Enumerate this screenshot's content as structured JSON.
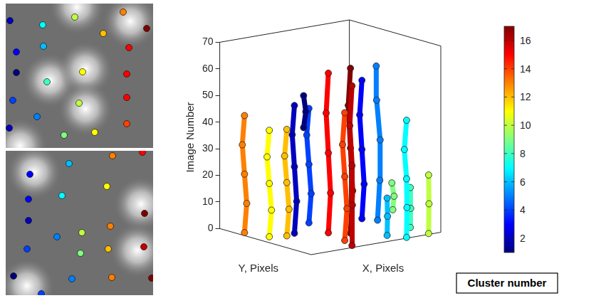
{
  "chart_data": {
    "type": "scatter3d",
    "x_label": "X, Pixels",
    "y_label": "Y, Pixels",
    "z_label": "Image Number",
    "xlim": [
      0,
      100
    ],
    "ylim": [
      0,
      100
    ],
    "zlim": [
      0,
      70
    ],
    "zticks": [
      0,
      10,
      20,
      30,
      40,
      50,
      60,
      70
    ],
    "marker": "circle",
    "line_style": "solid",
    "grid": false,
    "series": [
      {
        "cluster": 1,
        "color": "#000080",
        "points": [
          [
            40,
            65,
            38
          ],
          [
            41,
            64,
            44
          ],
          [
            40,
            65,
            50
          ]
        ]
      },
      {
        "cluster": 2,
        "color": "#0000BF",
        "points": [
          [
            28,
            58,
            0
          ],
          [
            29,
            57,
            12
          ],
          [
            28,
            58,
            25
          ],
          [
            27,
            59,
            37
          ],
          [
            28,
            58,
            48
          ]
        ]
      },
      {
        "cluster": 3,
        "color": "#0000FF",
        "points": [
          [
            85,
            65,
            0
          ],
          [
            86,
            64,
            13
          ],
          [
            85,
            65,
            26
          ],
          [
            84,
            66,
            39
          ],
          [
            85,
            65,
            52
          ]
        ]
      },
      {
        "cluster": 4,
        "color": "#0040FF",
        "points": [
          [
            30,
            45,
            5
          ],
          [
            31,
            44,
            16
          ],
          [
            30,
            45,
            27
          ],
          [
            29,
            46,
            38
          ],
          [
            30,
            45,
            48
          ]
        ]
      },
      {
        "cluster": 5,
        "color": "#0080FF",
        "points": [
          [
            90,
            55,
            0
          ],
          [
            91,
            54,
            15
          ],
          [
            92,
            55,
            30
          ],
          [
            90,
            56,
            45
          ],
          [
            89,
            55,
            58
          ]
        ]
      },
      {
        "cluster": 6,
        "color": "#00BFFF",
        "points": [
          [
            60,
            2,
            2
          ],
          [
            61,
            3,
            9
          ],
          [
            60,
            2,
            16
          ]
        ]
      },
      {
        "cluster": 7,
        "color": "#00FFFF",
        "points": [
          [
            75,
            2,
            0
          ],
          [
            76,
            3,
            11
          ],
          [
            75,
            2,
            22
          ],
          [
            74,
            3,
            33
          ],
          [
            75,
            2,
            44
          ]
        ]
      },
      {
        "cluster": 8,
        "color": "#40FFBF",
        "points": [
          [
            80,
            5,
            3
          ],
          [
            81,
            6,
            10
          ],
          [
            80,
            5,
            18
          ]
        ]
      },
      {
        "cluster": 9,
        "color": "#80FF80",
        "points": [
          [
            70,
            10,
            10
          ],
          [
            71,
            10,
            15
          ],
          [
            70,
            11,
            20
          ]
        ]
      },
      {
        "cluster": 10,
        "color": "#BFFF40",
        "points": [
          [
            92,
            2,
            0
          ],
          [
            93,
            3,
            11
          ],
          [
            92,
            2,
            22
          ]
        ]
      },
      {
        "cluster": 11,
        "color": "#FFFF00",
        "points": [
          [
            10,
            60,
            0
          ],
          [
            11,
            59,
            10
          ],
          [
            10,
            60,
            20
          ],
          [
            9,
            61,
            30
          ],
          [
            10,
            60,
            40
          ]
        ]
      },
      {
        "cluster": 12,
        "color": "#FFBF00",
        "points": [
          [
            20,
            55,
            0
          ],
          [
            21,
            54,
            10
          ],
          [
            20,
            55,
            20
          ],
          [
            19,
            56,
            30
          ],
          [
            20,
            55,
            40
          ]
        ]
      },
      {
        "cluster": 13,
        "color": "#FF8000",
        "points": [
          [
            5,
            80,
            0
          ],
          [
            6,
            79,
            11
          ],
          [
            5,
            80,
            22
          ],
          [
            4,
            81,
            33
          ],
          [
            5,
            80,
            44
          ]
        ]
      },
      {
        "cluster": 14,
        "color": "#FF4000",
        "points": [
          [
            40,
            20,
            0
          ],
          [
            41,
            19,
            12
          ],
          [
            40,
            20,
            24
          ],
          [
            39,
            21,
            36
          ],
          [
            40,
            20,
            48
          ]
        ]
      },
      {
        "cluster": 15,
        "color": "#FF0000",
        "points": [
          [
            45,
            45,
            0
          ],
          [
            46,
            44,
            15
          ],
          [
            45,
            45,
            30
          ],
          [
            44,
            46,
            45
          ],
          [
            45,
            45,
            60
          ]
        ]
      },
      {
        "cluster": 16,
        "color": "#BF0000",
        "points": [
          [
            35,
            5,
            0
          ],
          [
            36,
            6,
            15
          ],
          [
            35,
            5,
            30
          ],
          [
            34,
            6,
            45
          ],
          [
            35,
            5,
            60
          ]
        ]
      },
      {
        "cluster": 17,
        "color": "#800000",
        "points": [
          [
            55,
            35,
            0
          ],
          [
            56,
            34,
            16
          ],
          [
            55,
            35,
            32
          ],
          [
            54,
            36,
            48
          ],
          [
            55,
            35,
            62
          ]
        ]
      }
    ],
    "colorbar": {
      "label": "Cluster number",
      "range": [
        1,
        17
      ],
      "ticks": [
        2,
        4,
        6,
        8,
        10,
        12,
        14,
        16
      ]
    }
  },
  "images": [
    {
      "bright_spots": [
        [
          100,
          5
        ],
        [
          62,
          108
        ],
        [
          112,
          92
        ],
        [
          112,
          148
        ],
        [
          175,
          25
        ],
        [
          20,
          200
        ]
      ],
      "dots": [
        [
          6,
          24,
          2
        ],
        [
          52,
          30,
          7
        ],
        [
          97,
          19,
          10
        ],
        [
          165,
          12,
          13
        ],
        [
          198,
          35,
          17
        ],
        [
          137,
          42,
          12
        ],
        [
          15,
          68,
          3
        ],
        [
          53,
          60,
          6
        ],
        [
          173,
          62,
          15
        ],
        [
          15,
          97,
          1
        ],
        [
          58,
          110,
          8
        ],
        [
          108,
          96,
          11
        ],
        [
          170,
          99,
          15
        ],
        [
          10,
          136,
          4
        ],
        [
          103,
          140,
          10
        ],
        [
          170,
          132,
          15
        ],
        [
          44,
          159,
          5
        ],
        [
          5,
          175,
          2
        ],
        [
          82,
          185,
          9
        ],
        [
          125,
          181,
          11
        ],
        [
          170,
          169,
          14
        ]
      ]
    },
    {
      "bright_spots": [
        [
          40,
          30
        ],
        [
          190,
          75
        ],
        [
          185,
          140
        ],
        [
          30,
          190
        ]
      ],
      "dots": [
        [
          34,
          33,
          3
        ],
        [
          89,
          18,
          6
        ],
        [
          150,
          7,
          13
        ],
        [
          192,
          2,
          15
        ],
        [
          32,
          68,
          3
        ],
        [
          79,
          63,
          7
        ],
        [
          142,
          50,
          11
        ],
        [
          195,
          88,
          17
        ],
        [
          32,
          98,
          2
        ],
        [
          72,
          121,
          5
        ],
        [
          107,
          115,
          10
        ],
        [
          147,
          106,
          13
        ],
        [
          30,
          138,
          4
        ],
        [
          105,
          144,
          9
        ],
        [
          144,
          138,
          12
        ],
        [
          194,
          135,
          16
        ],
        [
          11,
          176,
          1
        ],
        [
          93,
          180,
          5
        ],
        [
          149,
          178,
          13
        ],
        [
          205,
          179,
          17
        ],
        [
          50,
          201,
          4
        ]
      ]
    }
  ]
}
